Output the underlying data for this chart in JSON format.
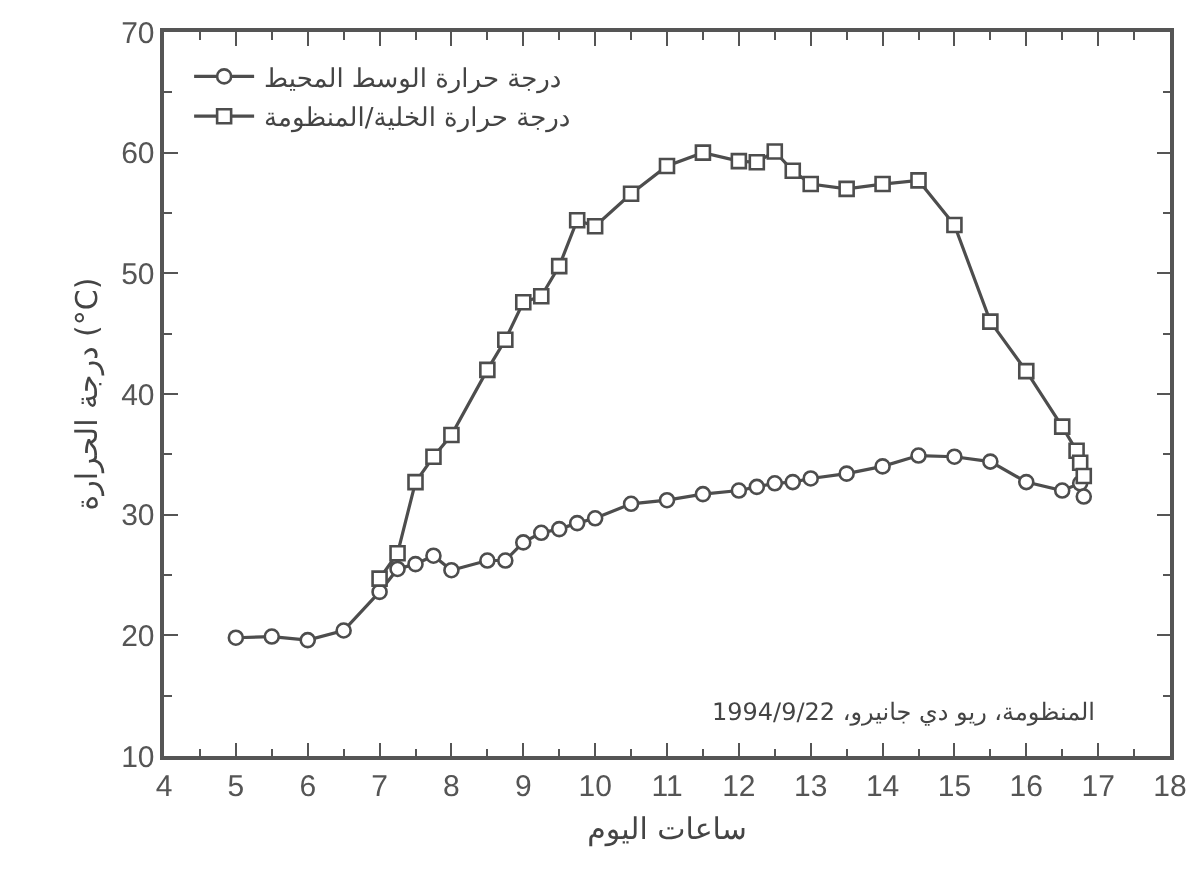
{
  "chart_data": {
    "type": "line",
    "xlabel": "ساعات اليوم",
    "ylabel": "درجة الحرارة (°C)",
    "annotations": [
      "المنظومة، ريو دي جانيرو، 1994/9/22"
    ],
    "xlim": [
      4,
      18
    ],
    "xticks": [
      4,
      {
        "value": 4.5,
        "label": null
      },
      5,
      {
        "value": 5.5,
        "label": null
      },
      6,
      {
        "value": 6.5,
        "label": null
      },
      7,
      {
        "value": 7.5,
        "label": null
      },
      8,
      {
        "value": 8.5,
        "label": null
      },
      9,
      {
        "value": 9.5,
        "label": null
      },
      10,
      {
        "value": 10.5,
        "label": null
      },
      11,
      {
        "value": 11.5,
        "label": null
      },
      12,
      {
        "value": 12.5,
        "label": null
      },
      13,
      {
        "value": 13.5,
        "label": null
      },
      14,
      {
        "value": 14.5,
        "label": null
      },
      15,
      {
        "value": 15.5,
        "label": null
      },
      16,
      {
        "value": 16.5,
        "label": null
      },
      17,
      {
        "value": 17.5,
        "label": null
      },
      18
    ],
    "ylim": [
      10,
      70
    ],
    "yticks": [
      10,
      {
        "value": 15,
        "label": null
      },
      20,
      {
        "value": 25,
        "label": null
      },
      30,
      {
        "value": 35,
        "label": null
      },
      40,
      {
        "value": 45,
        "label": null
      },
      50,
      {
        "value": 55,
        "label": null
      },
      60,
      {
        "value": 65,
        "label": null
      },
      70
    ],
    "legend": "top left",
    "line_style": "solid",
    "series": [
      {
        "name": "درجة حرارة الوسط المحيط",
        "color": "#4d4d4d",
        "marker": "circle",
        "x": [
          5,
          5.5,
          6,
          6.5,
          7,
          7.25,
          7.5,
          7.75,
          8,
          8.5,
          8.75,
          9,
          9.25,
          9.5,
          9.75,
          10,
          10.5,
          11,
          11.5,
          12,
          12.25,
          12.5,
          12.75,
          13,
          13.5,
          14,
          14.5,
          15,
          15.5,
          16,
          16.5,
          16.75,
          16.8
        ],
        "values": [
          19.8,
          19.9,
          19.6,
          20.4,
          23.6,
          25.5,
          25.9,
          26.6,
          25.4,
          26.2,
          26.2,
          27.7,
          28.5,
          28.8,
          29.3,
          29.7,
          30.9,
          31.2,
          31.7,
          32.0,
          32.3,
          32.6,
          32.7,
          33.0,
          33.4,
          34.0,
          34.9,
          34.8,
          34.4,
          32.7,
          32.0,
          32.6,
          31.5
        ]
      },
      {
        "name": "درجة حرارة الخلية/المنظومة",
        "color": "#4d4d4d",
        "marker": "square",
        "x": [
          7,
          7.25,
          7.5,
          7.75,
          8,
          8.5,
          8.75,
          9,
          9.25,
          9.5,
          9.75,
          10,
          10.5,
          11,
          11.5,
          12,
          12.25,
          12.5,
          12.75,
          13,
          13.5,
          14,
          14.5,
          15,
          15.5,
          16,
          16.5,
          16.7,
          16.75,
          16.8
        ],
        "values": [
          24.7,
          26.8,
          32.7,
          34.8,
          36.6,
          42.0,
          44.5,
          47.6,
          48.1,
          50.6,
          54.4,
          53.9,
          56.6,
          58.9,
          60.0,
          59.3,
          59.2,
          60.1,
          58.5,
          57.4,
          57.0,
          57.4,
          57.7,
          54.0,
          46.0,
          41.9,
          37.3,
          35.3,
          34.3,
          33.2
        ]
      }
    ]
  }
}
